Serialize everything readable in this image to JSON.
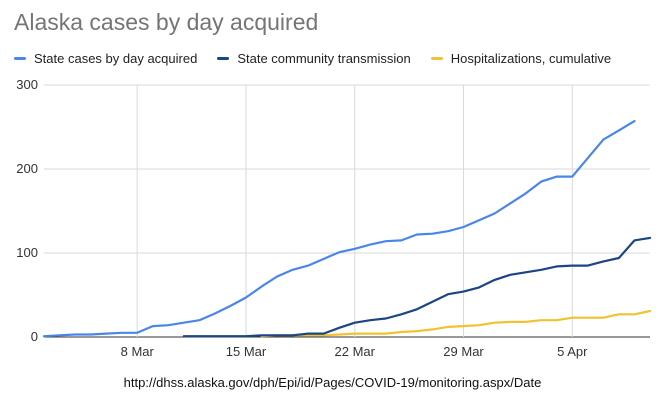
{
  "chart_data": {
    "type": "line",
    "title": "Alaska cases by day acquired",
    "x": [
      "Mar 2",
      "Mar 3",
      "Mar 4",
      "Mar 5",
      "Mar 6",
      "Mar 7",
      "Mar 8",
      "Mar 9",
      "Mar 10",
      "Mar 11",
      "Mar 12",
      "Mar 13",
      "Mar 14",
      "Mar 15",
      "Mar 16",
      "Mar 17",
      "Mar 18",
      "Mar 19",
      "Mar 20",
      "Mar 21",
      "Mar 22",
      "Mar 23",
      "Mar 24",
      "Mar 25",
      "Mar 26",
      "Mar 27",
      "Mar 28",
      "Mar 29",
      "Mar 30",
      "Mar 31",
      "Apr 1",
      "Apr 2",
      "Apr 3",
      "Apr 4",
      "Apr 5",
      "Apr 6",
      "Apr 7",
      "Apr 8",
      "Apr 9",
      "Apr 10"
    ],
    "x_ticks": [
      "8 Mar",
      "15 Mar",
      "22 Mar",
      "29 Mar",
      "5 Apr"
    ],
    "x_tick_dates": [
      "Mar 8",
      "Mar 15",
      "Mar 22",
      "Mar 29",
      "Apr 5"
    ],
    "y_ticks": [
      0,
      100,
      200,
      300
    ],
    "ylim": [
      0,
      300
    ],
    "grid": true,
    "legend_position": "top",
    "series": [
      {
        "name": "State cases by day acquired",
        "color": "#4a86e8",
        "values": [
          1,
          2,
          3,
          3,
          4,
          5,
          5,
          13,
          14,
          17,
          20,
          28,
          37,
          47,
          60,
          72,
          80,
          85,
          93,
          101,
          105,
          110,
          114,
          115,
          122,
          123,
          126,
          131,
          139,
          147,
          159,
          171,
          185,
          191,
          191,
          213,
          235,
          246,
          257,
          null
        ]
      },
      {
        "name": "State community transmission",
        "color": "#1c4587",
        "values": [
          null,
          null,
          null,
          null,
          null,
          null,
          null,
          null,
          null,
          1,
          1,
          1,
          1,
          1,
          2,
          2,
          2,
          4,
          4,
          11,
          17,
          20,
          22,
          27,
          33,
          42,
          51,
          54,
          59,
          68,
          74,
          77,
          80,
          84,
          85,
          85,
          90,
          94,
          115,
          118
        ]
      },
      {
        "name": "Hospitalizations, cumulative",
        "color": "#f1c232",
        "values": [
          null,
          null,
          null,
          null,
          null,
          null,
          null,
          null,
          null,
          null,
          null,
          null,
          null,
          null,
          1,
          2,
          2,
          2,
          2,
          3,
          4,
          4,
          4,
          6,
          7,
          9,
          12,
          13,
          14,
          17,
          18,
          18,
          20,
          20,
          23,
          23,
          23,
          27,
          27,
          31
        ]
      }
    ]
  },
  "source_text": "http://dhss.alaska.gov/dph/Epi/id/Pages/COVID-19/monitoring.aspx/Date"
}
